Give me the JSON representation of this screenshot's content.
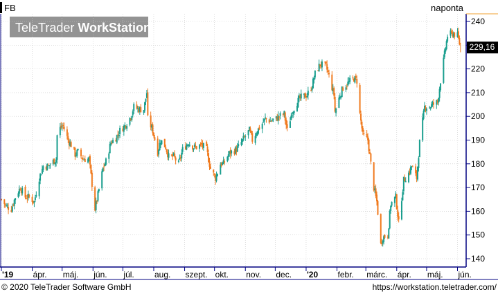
{
  "ticker": "FB",
  "interval_label": "naponta",
  "brand": {
    "part1": "TeleTrader",
    "part2": "WorkStation"
  },
  "last_price_label": "229,16",
  "footer": {
    "copyright": "© 2020 TeleTrader Software GmbH",
    "url": "https://workstation.teletrader.com/"
  },
  "colors": {
    "up": "#1a9e8e",
    "down": "#f07a1e",
    "accent": "#f0a030",
    "axis": "#000080"
  },
  "chart_data": {
    "type": "candlestick",
    "x_labels": [
      {
        "label": "'19",
        "date": "2019-03-01"
      },
      {
        "label": "ápr.",
        "date": "2019-04-01"
      },
      {
        "label": "máj.",
        "date": "2019-05-01"
      },
      {
        "label": "jún.",
        "date": "2019-06-01"
      },
      {
        "label": "júl.",
        "date": "2019-07-01"
      },
      {
        "label": "aug.",
        "date": "2019-08-01"
      },
      {
        "label": "szept.",
        "date": "2019-09-01"
      },
      {
        "label": "okt.",
        "date": "2019-10-01"
      },
      {
        "label": "nov.",
        "date": "2019-11-01"
      },
      {
        "label": "dec.",
        "date": "2019-12-01"
      },
      {
        "label": "'20",
        "date": "2020-01-01"
      },
      {
        "label": "febr.",
        "date": "2020-02-01"
      },
      {
        "label": "márc.",
        "date": "2020-03-01"
      },
      {
        "label": "ápr.",
        "date": "2020-04-01"
      },
      {
        "label": "máj.",
        "date": "2020-05-01"
      },
      {
        "label": "jún.",
        "date": "2020-06-01"
      }
    ],
    "y_ticks": [
      140,
      150,
      160,
      170,
      180,
      190,
      200,
      210,
      220,
      230,
      240
    ],
    "ylim": [
      135,
      242
    ],
    "last_value": 229.16,
    "x_range": [
      "2019-03-01",
      "2020-06-09"
    ],
    "closes": [
      [
        "2019-03-01",
        165
      ],
      [
        "2019-03-06",
        162
      ],
      [
        "2019-03-11",
        161
      ],
      [
        "2019-03-15",
        166
      ],
      [
        "2019-03-20",
        170
      ],
      [
        "2019-03-25",
        166
      ],
      [
        "2019-03-29",
        166
      ],
      [
        "2019-04-03",
        164
      ],
      [
        "2019-04-08",
        174
      ],
      [
        "2019-04-12",
        179
      ],
      [
        "2019-04-17",
        179
      ],
      [
        "2019-04-22",
        181
      ],
      [
        "2019-04-25",
        182
      ],
      [
        "2019-04-26",
        192
      ],
      [
        "2019-04-29",
        195
      ],
      [
        "2019-05-02",
        196
      ],
      [
        "2019-05-07",
        190
      ],
      [
        "2019-05-10",
        188
      ],
      [
        "2019-05-14",
        184
      ],
      [
        "2019-05-17",
        185
      ],
      [
        "2019-05-22",
        182
      ],
      [
        "2019-05-28",
        182
      ],
      [
        "2019-06-03",
        161
      ],
      [
        "2019-06-06",
        167
      ],
      [
        "2019-06-11",
        178
      ],
      [
        "2019-06-14",
        181
      ],
      [
        "2019-06-19",
        189
      ],
      [
        "2019-06-24",
        191
      ],
      [
        "2019-06-28",
        194
      ],
      [
        "2019-07-03",
        196
      ],
      [
        "2019-07-09",
        200
      ],
      [
        "2019-07-12",
        204
      ],
      [
        "2019-07-17",
        203
      ],
      [
        "2019-07-22",
        203
      ],
      [
        "2019-07-25",
        210
      ],
      [
        "2019-07-26",
        199
      ],
      [
        "2019-07-31",
        194
      ],
      [
        "2019-08-05",
        185
      ],
      [
        "2019-08-08",
        190
      ],
      [
        "2019-08-13",
        187
      ],
      [
        "2019-08-16",
        183
      ],
      [
        "2019-08-21",
        183
      ],
      [
        "2019-08-26",
        180
      ],
      [
        "2019-08-30",
        186
      ],
      [
        "2019-09-05",
        189
      ],
      [
        "2019-09-10",
        187
      ],
      [
        "2019-09-13",
        187
      ],
      [
        "2019-09-18",
        188
      ],
      [
        "2019-09-23",
        186
      ],
      [
        "2019-09-27",
        178
      ],
      [
        "2019-10-02",
        174
      ],
      [
        "2019-10-07",
        180
      ],
      [
        "2019-10-10",
        180
      ],
      [
        "2019-10-15",
        184
      ],
      [
        "2019-10-18",
        185
      ],
      [
        "2019-10-23",
        186
      ],
      [
        "2019-10-28",
        189
      ],
      [
        "2019-10-31",
        191
      ],
      [
        "2019-11-05",
        194
      ],
      [
        "2019-11-08",
        190
      ],
      [
        "2019-11-13",
        194
      ],
      [
        "2019-11-18",
        197
      ],
      [
        "2019-11-21",
        199
      ],
      [
        "2019-11-26",
        198
      ],
      [
        "2019-12-02",
        199
      ],
      [
        "2019-12-05",
        200
      ],
      [
        "2019-12-10",
        201
      ],
      [
        "2019-12-13",
        194
      ],
      [
        "2019-12-18",
        202
      ],
      [
        "2019-12-23",
        206
      ],
      [
        "2019-12-27",
        208
      ],
      [
        "2020-01-02",
        209
      ],
      [
        "2020-01-07",
        213
      ],
      [
        "2020-01-10",
        218
      ],
      [
        "2020-01-15",
        222
      ],
      [
        "2020-01-21",
        221
      ],
      [
        "2020-01-24",
        217
      ],
      [
        "2020-01-29",
        209
      ],
      [
        "2020-01-30",
        202
      ],
      [
        "2020-02-04",
        209
      ],
      [
        "2020-02-07",
        212
      ],
      [
        "2020-02-12",
        214
      ],
      [
        "2020-02-18",
        216
      ],
      [
        "2020-02-21",
        215
      ],
      [
        "2020-02-24",
        201
      ],
      [
        "2020-02-27",
        192
      ],
      [
        "2020-03-03",
        190
      ],
      [
        "2020-03-09",
        170
      ],
      [
        "2020-03-12",
        164
      ],
      [
        "2020-03-16",
        146
      ],
      [
        "2020-03-18",
        149
      ],
      [
        "2020-03-23",
        150
      ],
      [
        "2020-03-26",
        163
      ],
      [
        "2020-03-31",
        166
      ],
      [
        "2020-04-03",
        155
      ],
      [
        "2020-04-08",
        173
      ],
      [
        "2020-04-13",
        176
      ],
      [
        "2020-04-16",
        179
      ],
      [
        "2020-04-21",
        174
      ],
      [
        "2020-04-24",
        189
      ],
      [
        "2020-04-29",
        204
      ],
      [
        "2020-05-04",
        204
      ],
      [
        "2020-05-07",
        205
      ],
      [
        "2020-05-12",
        206
      ],
      [
        "2020-05-15",
        215
      ],
      [
        "2020-05-20",
        229
      ],
      [
        "2020-05-22",
        234
      ],
      [
        "2020-05-27",
        235
      ],
      [
        "2020-06-01",
        234
      ],
      [
        "2020-06-04",
        229
      ]
    ]
  }
}
